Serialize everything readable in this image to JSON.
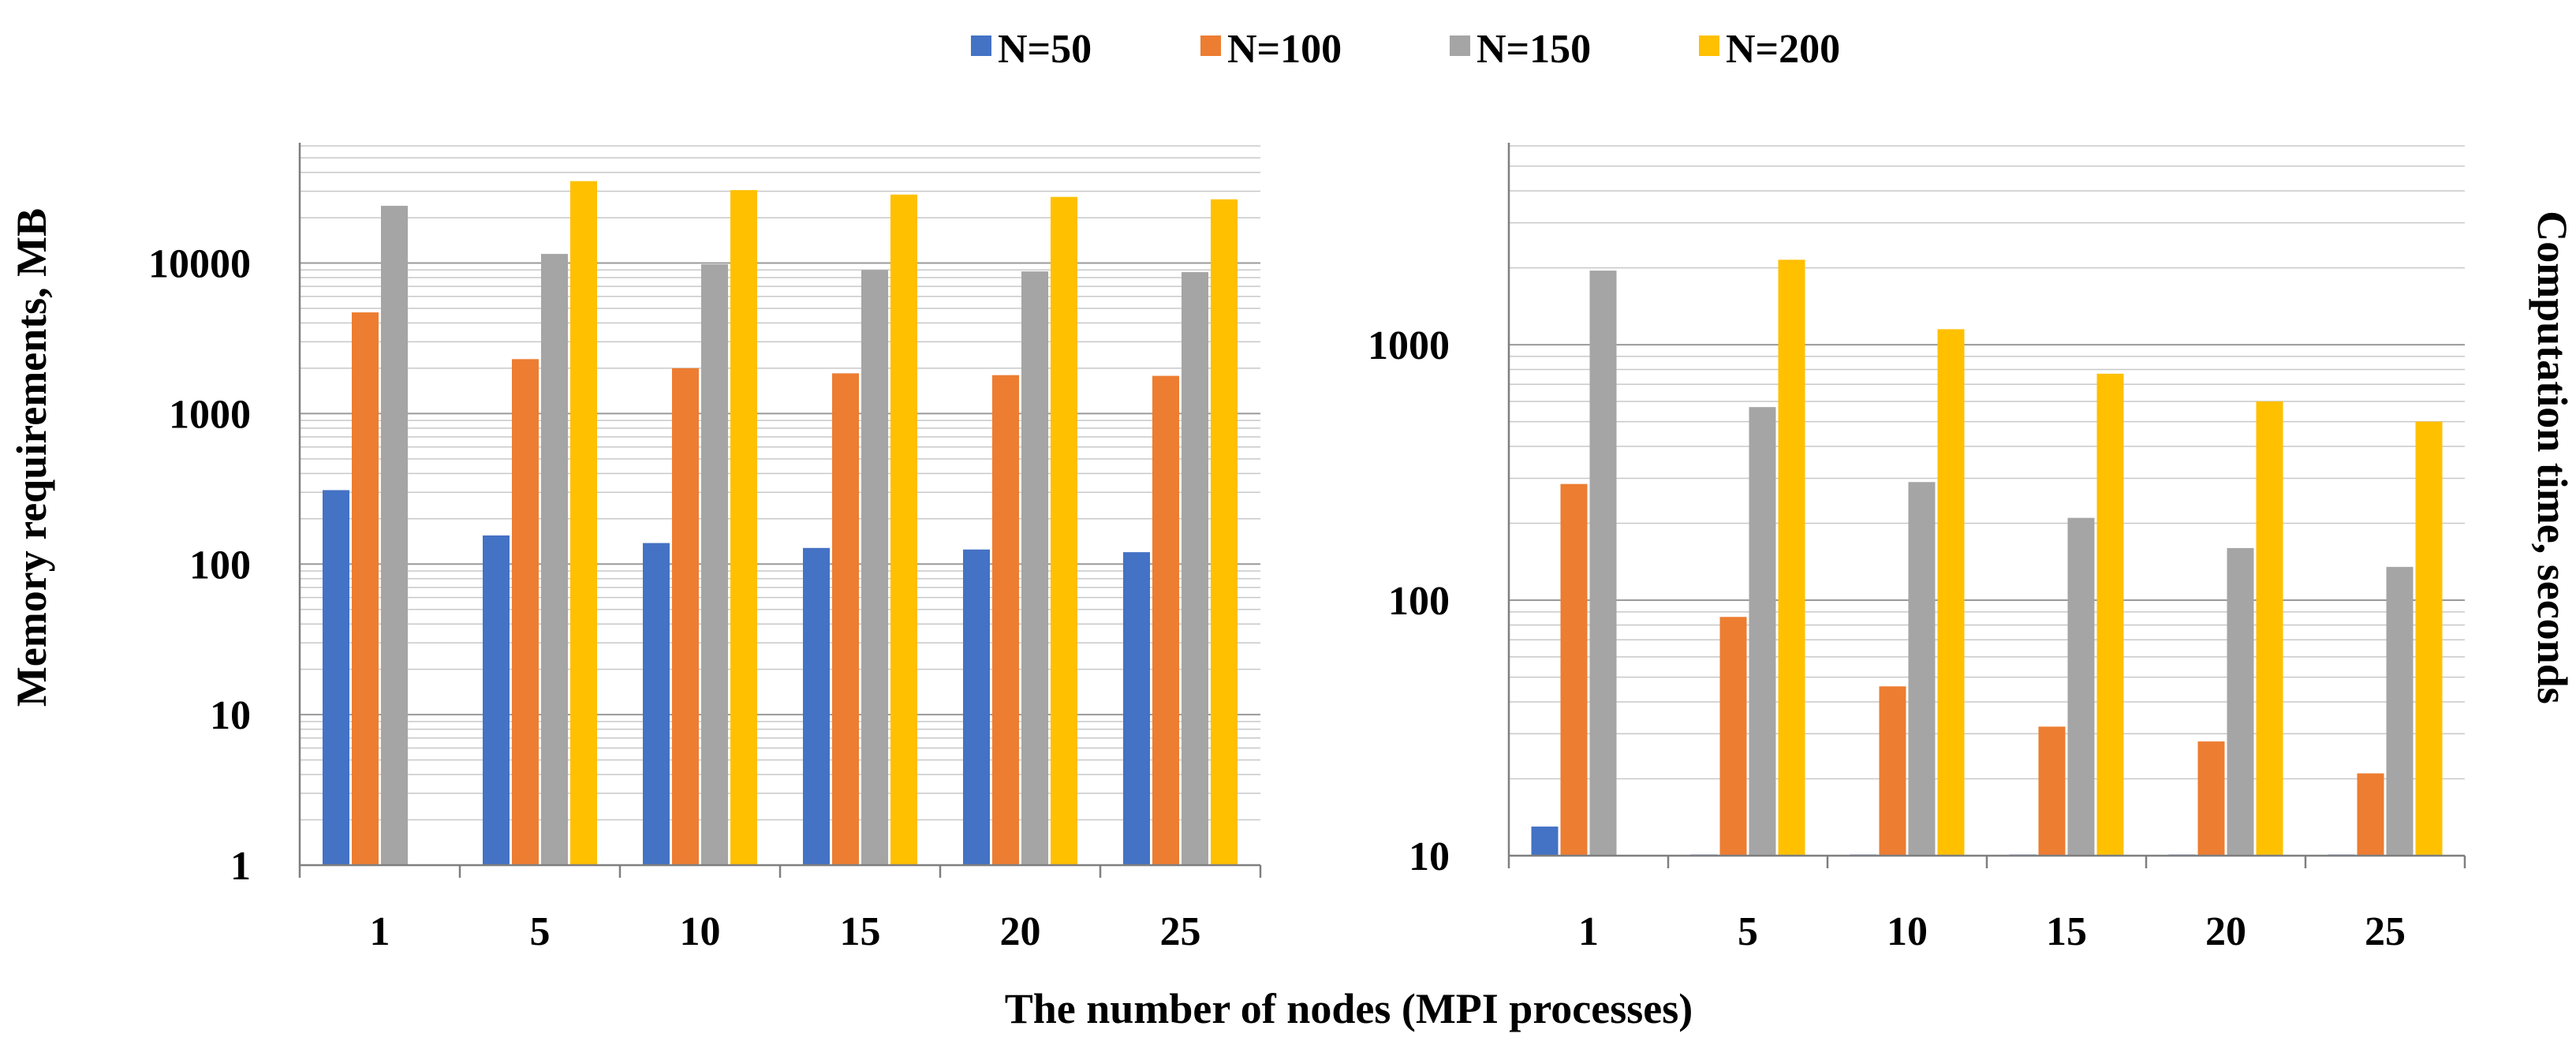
{
  "legend": [
    {
      "label": "N=50",
      "color": "#4472C4"
    },
    {
      "label": "N=100",
      "color": "#ED7D31"
    },
    {
      "label": "N=150",
      "color": "#A5A5A5"
    },
    {
      "label": "N=200",
      "color": "#FFC000"
    }
  ],
  "shared_xlabel": "The number of nodes (MPI processes)",
  "chart_data": [
    {
      "type": "bar",
      "title": "",
      "scale": "log",
      "categories": [
        "1",
        "5",
        "10",
        "15",
        "20",
        "25"
      ],
      "ylabel": "Memory requirements, MB",
      "xlabel": "The number of nodes (MPI processes)",
      "ylim": [
        1,
        60000
      ],
      "yticks": [
        1,
        10,
        100,
        1000,
        10000
      ],
      "ytick_labels": [
        "1",
        "10",
        "100",
        "1000",
        "10000"
      ],
      "series": [
        {
          "name": "N=50",
          "values": [
            310,
            155,
            138,
            128,
            125,
            120
          ]
        },
        {
          "name": "N=100",
          "values": [
            4700,
            2300,
            2000,
            1850,
            1800,
            1780
          ]
        },
        {
          "name": "N=150",
          "values": [
            24000,
            11500,
            9800,
            9000,
            8800,
            8700
          ]
        },
        {
          "name": "N=200",
          "values": [
            null,
            35000,
            30500,
            28500,
            27500,
            26500
          ]
        }
      ]
    },
    {
      "type": "bar",
      "title": "",
      "scale": "log",
      "categories": [
        "1",
        "5",
        "10",
        "15",
        "20",
        "25"
      ],
      "ylabel": "Computation time, seconds",
      "xlabel": "The number of nodes (MPI processes)",
      "ylim": [
        10,
        6000
      ],
      "yticks": [
        10,
        100,
        1000
      ],
      "ytick_labels": [
        "10",
        "100",
        "1000"
      ],
      "series": [
        {
          "name": "N=50",
          "values": [
            13,
            10,
            10,
            10,
            10,
            10
          ]
        },
        {
          "name": "N=100",
          "values": [
            285,
            86,
            46,
            32,
            28,
            21
          ]
        },
        {
          "name": "N=150",
          "values": [
            1950,
            570,
            290,
            210,
            160,
            135
          ]
        },
        {
          "name": "N=200",
          "values": [
            null,
            2150,
            1150,
            770,
            600,
            500
          ]
        }
      ]
    }
  ]
}
